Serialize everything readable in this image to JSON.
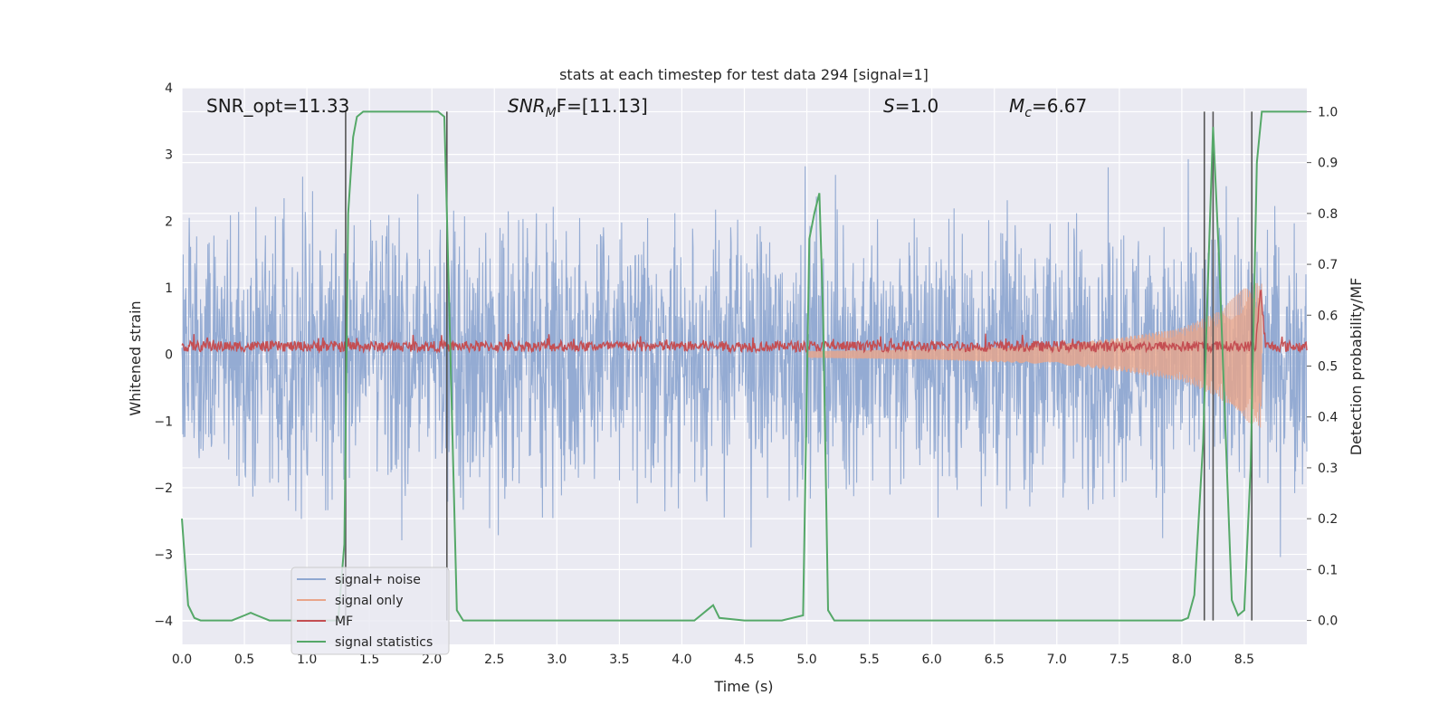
{
  "chart_data": {
    "type": "line",
    "title": "stats at each timestep for test data 294 [signal=1]",
    "xlabel": "Time (s)",
    "ylabel": "Whitened strain",
    "y2label": "Detection probability/MF",
    "xlim": [
      0,
      9
    ],
    "ylim": [
      -4.35,
      4
    ],
    "y2lim": [
      -0.047,
      1.047
    ],
    "x_ticks": [
      "0.0",
      "0.5",
      "1.0",
      "1.5",
      "2.0",
      "2.5",
      "3.0",
      "3.5",
      "4.0",
      "4.5",
      "5.0",
      "5.5",
      "6.0",
      "6.5",
      "7.0",
      "7.5",
      "8.0",
      "8.5"
    ],
    "y_ticks": [
      "4",
      "3",
      "2",
      "1",
      "0",
      "−1",
      "−2",
      "−3",
      "−4"
    ],
    "y2_ticks": [
      "1.0",
      "0.9",
      "0.8",
      "0.7",
      "0.6",
      "0.5",
      "0.4",
      "0.3",
      "0.2",
      "0.1",
      "0.0"
    ],
    "grid": true,
    "legend_position": "lower-left",
    "annotations": {
      "snr_opt": "SNR_opt=11.33",
      "snr_mf_pre": "SNR",
      "snr_mf_sub": "M",
      "snr_mf_post": "F=[11.13]",
      "s_italic": "S",
      "s_post": "=1.0",
      "mc_italic": "M",
      "mc_sub": "c",
      "mc_post": "=6.67"
    },
    "series": [
      {
        "name": "signal+ noise",
        "color": "#8fa8d1",
        "noise_amplitude_typical": 1.3,
        "noise_amplitude_peak": 3.6
      },
      {
        "name": "signal only",
        "color": "#e9a58a",
        "envelope": [
          [
            5.0,
            0.05
          ],
          [
            6.0,
            0.08
          ],
          [
            7.0,
            0.15
          ],
          [
            7.5,
            0.25
          ],
          [
            8.0,
            0.4
          ],
          [
            8.3,
            0.65
          ],
          [
            8.5,
            1.0
          ],
          [
            8.63,
            1.1
          ]
        ],
        "end_time": 8.64
      },
      {
        "name": "MF",
        "color": "#c44e52",
        "baseline": 0.12,
        "spread": 0.08,
        "peak": {
          "x": 8.63,
          "y": 1.0
        }
      },
      {
        "name": "signal statistics",
        "color": "#55a868",
        "x": [
          0.0,
          0.05,
          0.1,
          0.15,
          0.2,
          0.3,
          0.4,
          0.5,
          0.55,
          0.6,
          0.7,
          0.8,
          0.9,
          1.0,
          1.1,
          1.2,
          1.25,
          1.3,
          1.33,
          1.37,
          1.4,
          1.45,
          2.0,
          2.05,
          2.1,
          2.12,
          2.2,
          2.25,
          2.3,
          4.0,
          4.1,
          4.15,
          4.2,
          4.25,
          4.3,
          4.5,
          4.8,
          4.97,
          5.02,
          5.06,
          5.1,
          5.13,
          5.17,
          5.22,
          5.3,
          8.0,
          8.05,
          8.1,
          8.17,
          8.2,
          8.25,
          8.3,
          8.4,
          8.45,
          8.5,
          8.55,
          8.6,
          8.62,
          8.64,
          8.7,
          8.75,
          9.0
        ],
        "y": [
          0.2,
          0.03,
          0.005,
          0.0,
          0.0,
          0.0,
          0.0,
          0.01,
          0.015,
          0.01,
          0.0,
          0.0,
          0.0,
          0.0,
          0.0,
          0.0,
          0.0,
          0.15,
          0.8,
          0.95,
          0.99,
          1.0,
          1.0,
          1.0,
          0.99,
          0.8,
          0.02,
          0.0,
          0.0,
          0.0,
          0.0,
          0.01,
          0.02,
          0.03,
          0.005,
          0.0,
          0.0,
          0.01,
          0.75,
          0.8,
          0.84,
          0.6,
          0.02,
          0.0,
          0.0,
          0.0,
          0.005,
          0.05,
          0.35,
          0.6,
          0.97,
          0.7,
          0.04,
          0.01,
          0.02,
          0.3,
          0.9,
          0.95,
          1.0,
          1.0,
          1.0,
          1.0
        ]
      }
    ],
    "vertical_markers": [
      1.31,
      2.12,
      8.18,
      8.25,
      8.56
    ]
  }
}
